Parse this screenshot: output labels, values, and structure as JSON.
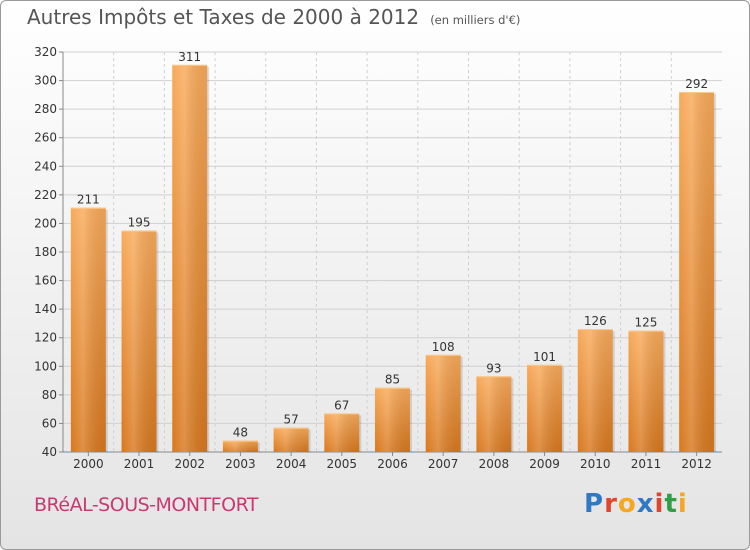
{
  "title": {
    "main": "Autres Impôts et Taxes de 2000 à 2012",
    "unit": "(en milliers d'€)"
  },
  "commune": "BRéAL-SOUS-MONTFORT",
  "logo": {
    "text": "Proxiti",
    "letter_colors": [
      "#2f78c4",
      "#e2452f",
      "#f5a623",
      "#2f78c4",
      "#e2452f",
      "#2f9e44",
      "#f5a623"
    ]
  },
  "colors": {
    "bar_light": "#f8aa5a",
    "bar_dark": "#d8781e",
    "grid": "#d0d0d0",
    "axis": "#888888"
  },
  "chart_data": {
    "type": "bar",
    "title": "Autres Impôts et Taxes de 2000 à 2012",
    "subtitle": "(en milliers d'€)",
    "xlabel": "",
    "ylabel": "",
    "categories": [
      "2000",
      "2001",
      "2002",
      "2003",
      "2004",
      "2005",
      "2006",
      "2007",
      "2008",
      "2009",
      "2010",
      "2011",
      "2012"
    ],
    "values": [
      211,
      195,
      311,
      48,
      57,
      67,
      85,
      108,
      93,
      101,
      126,
      125,
      292
    ],
    "ylim": [
      40,
      320
    ],
    "yticks": [
      40,
      60,
      80,
      100,
      120,
      140,
      160,
      180,
      200,
      220,
      240,
      260,
      280,
      300,
      320
    ],
    "grid": true,
    "legend": "none"
  }
}
